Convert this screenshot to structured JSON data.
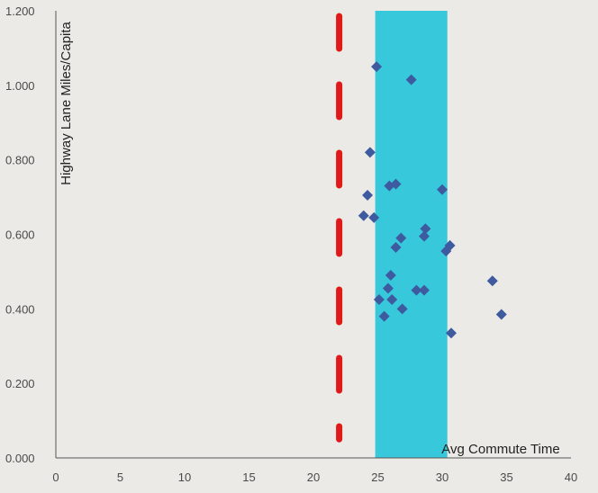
{
  "chart_data": {
    "type": "scatter",
    "title": "",
    "xlabel": "Avg Commute Time",
    "ylabel": "Highway Lane Miles/Capita",
    "xlim": [
      0,
      40
    ],
    "ylim": [
      0,
      1.2
    ],
    "x_ticks": [
      "0",
      "5",
      "10",
      "15",
      "20",
      "25",
      "30",
      "35",
      "40"
    ],
    "y_ticks": [
      "0.000",
      "0.200",
      "0.400",
      "0.600",
      "0.800",
      "1.000",
      "1.200"
    ],
    "grid": false,
    "legend": "none",
    "reference_line": {
      "style": "dashed",
      "x": 22.0,
      "y_range": [
        0.05,
        1.2
      ],
      "color": "#e01a1a"
    },
    "highlight_band": {
      "x_range": [
        24.8,
        30.4
      ],
      "color": "#37c8dc"
    },
    "marker_color": "#3d5b9e",
    "points": [
      {
        "x": 24.9,
        "y": 1.05
      },
      {
        "x": 27.6,
        "y": 1.015
      },
      {
        "x": 24.4,
        "y": 0.82
      },
      {
        "x": 24.2,
        "y": 0.705
      },
      {
        "x": 25.9,
        "y": 0.73
      },
      {
        "x": 26.4,
        "y": 0.735
      },
      {
        "x": 30.0,
        "y": 0.72
      },
      {
        "x": 23.9,
        "y": 0.65
      },
      {
        "x": 24.7,
        "y": 0.645
      },
      {
        "x": 28.7,
        "y": 0.615
      },
      {
        "x": 26.8,
        "y": 0.59
      },
      {
        "x": 28.6,
        "y": 0.595
      },
      {
        "x": 26.4,
        "y": 0.565
      },
      {
        "x": 30.6,
        "y": 0.57
      },
      {
        "x": 30.3,
        "y": 0.555
      },
      {
        "x": 26.0,
        "y": 0.49
      },
      {
        "x": 33.9,
        "y": 0.475
      },
      {
        "x": 25.8,
        "y": 0.455
      },
      {
        "x": 28.0,
        "y": 0.45
      },
      {
        "x": 28.6,
        "y": 0.45
      },
      {
        "x": 25.1,
        "y": 0.425
      },
      {
        "x": 26.1,
        "y": 0.425
      },
      {
        "x": 26.9,
        "y": 0.4
      },
      {
        "x": 25.5,
        "y": 0.38
      },
      {
        "x": 34.6,
        "y": 0.385
      },
      {
        "x": 30.7,
        "y": 0.335
      }
    ]
  }
}
